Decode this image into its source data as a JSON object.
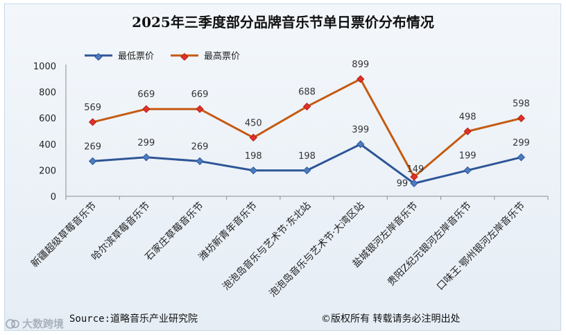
{
  "chart_data": {
    "type": "line",
    "title": "2025年三季度部分品牌音乐节单日票价分布情况",
    "categories": [
      "新疆超级草莓音乐节",
      "哈尔滨草莓音乐节",
      "石家庄草莓音乐节",
      "潍坊新青年音乐节",
      "泡泡岛音乐与艺术节·东北站",
      "泡泡岛音乐与艺术节·大湾区站",
      "盐城银河左岸音乐节",
      "贵阳Z纪元银河左岸音乐节",
      "口味王·鄂州银河左岸音乐节"
    ],
    "series": [
      {
        "name": "最低票价",
        "color": "#2e5597",
        "values": [
          269,
          299,
          269,
          198,
          198,
          399,
          99,
          199,
          299
        ]
      },
      {
        "name": "最高票价",
        "color": "#c55a11",
        "values": [
          569,
          669,
          669,
          450,
          688,
          899,
          149,
          498,
          598
        ]
      }
    ],
    "yticks": [
      0,
      200,
      400,
      600,
      800,
      1000
    ],
    "ylim": [
      0,
      1000
    ],
    "grid": false,
    "legend": "top-left"
  },
  "footer": {
    "source": "Source:道略音乐产业研究院",
    "copyright": "©版权所有   转载请务必注明出处"
  },
  "watermark": {
    "text": "大数跨境"
  }
}
